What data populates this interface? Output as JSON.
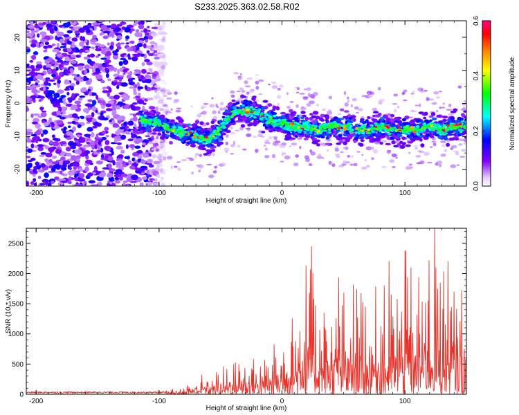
{
  "title": "S233.2025.363.02.58.R02",
  "chart_data": [
    {
      "type": "heatmap",
      "xlabel": "Height of straight line (km)",
      "ylabel": "Frequency (Hz)",
      "xlim": [
        -208,
        150
      ],
      "ylim": [
        -25,
        25
      ],
      "xticks": [
        -200,
        -100,
        0,
        100
      ],
      "yticks": [
        -20,
        -10,
        0,
        10,
        20
      ],
      "colorbar": {
        "label": "Normalized spectral amplitude",
        "range": [
          0,
          0.6
        ],
        "ticks": [
          "0.0",
          "0.2",
          "0.4",
          "0.6"
        ],
        "colors": [
          "#ffffff",
          "#8000ff",
          "#0000ff",
          "#00ffff",
          "#00ff00",
          "#ffff00",
          "#ff8000",
          "#ff0000",
          "#ff0080"
        ]
      },
      "noise_region_x": [
        -208,
        -95
      ],
      "signal_ridge": {
        "x": [
          -115,
          -100,
          -90,
          -80,
          -70,
          -60,
          -50,
          -40,
          -30,
          -20,
          -10,
          0,
          10,
          20,
          30,
          40,
          50,
          60,
          70,
          80,
          90,
          100,
          110,
          120,
          130,
          140,
          150
        ],
        "freq": [
          -5,
          -6,
          -8,
          -9,
          -10,
          -11,
          -8,
          -3,
          -2,
          -3,
          -5,
          -6,
          -7,
          -7,
          -8,
          -7,
          -7,
          -8,
          -8,
          -7,
          -8,
          -8,
          -8,
          -7,
          -8,
          -7,
          -7
        ]
      }
    },
    {
      "type": "line",
      "xlabel": "Height of straight line (km)",
      "ylabel": "SNR (10 * v/v)",
      "xlim": [
        -208,
        150
      ],
      "ylim": [
        0,
        2750
      ],
      "xticks": [
        -200,
        -100,
        0,
        100
      ],
      "yticks": [
        0,
        500,
        1000,
        1500,
        2000,
        2500
      ],
      "color": "#e8322a",
      "envelope": {
        "x": [
          -208,
          -100,
          -90,
          -80,
          -70,
          -60,
          -50,
          -40,
          -30,
          -20,
          -10,
          0,
          10,
          20,
          30,
          40,
          50,
          60,
          70,
          80,
          90,
          100,
          110,
          120,
          130,
          140,
          150
        ],
        "snr": [
          40,
          40,
          80,
          150,
          300,
          400,
          450,
          550,
          650,
          600,
          700,
          1100,
          1400,
          2450,
          1600,
          1600,
          1800,
          2000,
          1900,
          1800,
          1900,
          2400,
          2000,
          2750,
          2300,
          2100,
          1900
        ]
      },
      "peaks": [
        {
          "x": 24,
          "y": 2450
        },
        {
          "x": 100,
          "y": 2380
        },
        {
          "x": 124,
          "y": 2750
        },
        {
          "x": 135,
          "y": 2200
        },
        {
          "x": 46,
          "y": 1930
        },
        {
          "x": 87,
          "y": 2200
        }
      ]
    }
  ]
}
